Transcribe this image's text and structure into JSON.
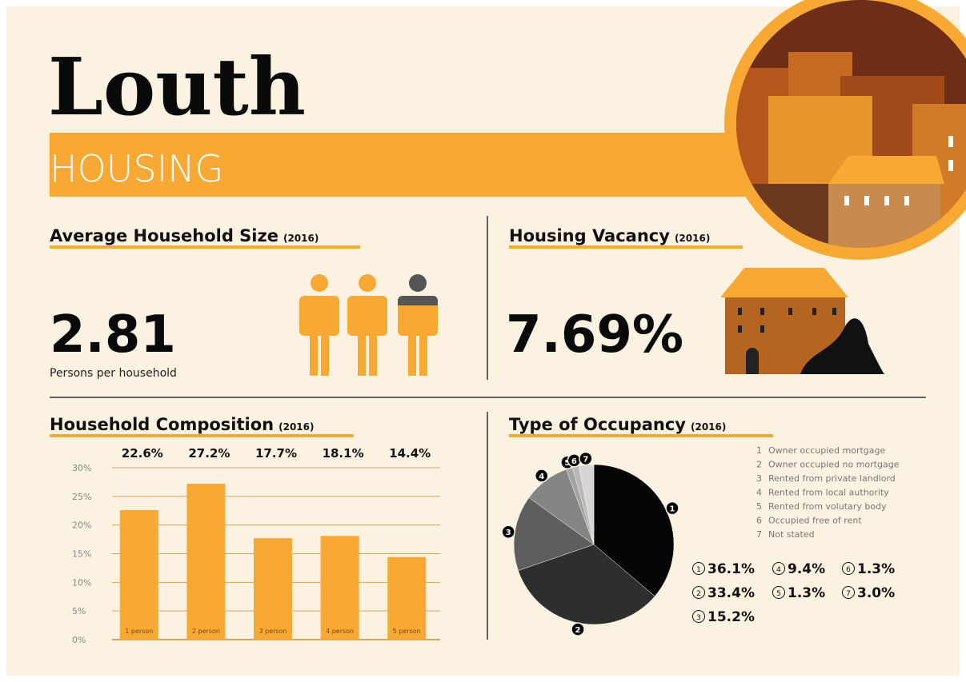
{
  "header": {
    "title": "Louth",
    "subtitle": "HOUSING"
  },
  "household_size": {
    "heading": "Average Household Size",
    "year": "(2016)",
    "value": "2.81",
    "caption": "Persons per household"
  },
  "vacancy": {
    "heading": "Housing Vacancy",
    "year": "(2016)",
    "value": "7.69%"
  },
  "chart_data": [
    {
      "type": "bar",
      "title": "Household Composition",
      "subtitle": "(2016)",
      "categories": [
        "1 person",
        "2 person",
        "3 person",
        "4 person",
        "5 person"
      ],
      "values": [
        22.6,
        27.2,
        17.7,
        18.1,
        14.4
      ],
      "value_labels": [
        "22.6%",
        "27.2%",
        "17.7%",
        "18.1%",
        "14.4%"
      ],
      "color": "#f7a934",
      "ylim": [
        0,
        30
      ],
      "yticks": [
        {
          "value": 0,
          "label": "0%"
        },
        {
          "value": 5,
          "label": "5%"
        },
        {
          "value": 10,
          "label": "10%"
        },
        {
          "value": 15,
          "label": "15%"
        },
        {
          "value": 20,
          "label": "20%"
        },
        {
          "value": 25,
          "label": "25%"
        },
        {
          "value": 30,
          "label": "30%"
        }
      ],
      "grid": true
    },
    {
      "type": "pie",
      "title": "Type of Occupancy",
      "subtitle": "(2016)",
      "numbers": [
        "1",
        "2",
        "3",
        "4",
        "5",
        "6",
        "7"
      ],
      "categories": [
        "Owner occupied mortgage",
        "Owner occupied no mortgage",
        "Rented from private landlord",
        "Rented from local authority",
        "Rented from volutary body",
        "Occupied free of rent",
        "Not stated"
      ],
      "values": [
        36.1,
        33.4,
        15.2,
        9.4,
        1.3,
        1.3,
        3.0
      ],
      "value_labels": [
        "36.1%",
        "33.4%",
        "15.2%",
        "9.4%",
        "1.3%",
        "1.3%",
        "3.0%"
      ],
      "colors": [
        "#050505",
        "#2e2e2e",
        "#5e5e5e",
        "#858585",
        "#a3a3a3",
        "#b8b8b8",
        "#d6d6d6"
      ]
    }
  ]
}
